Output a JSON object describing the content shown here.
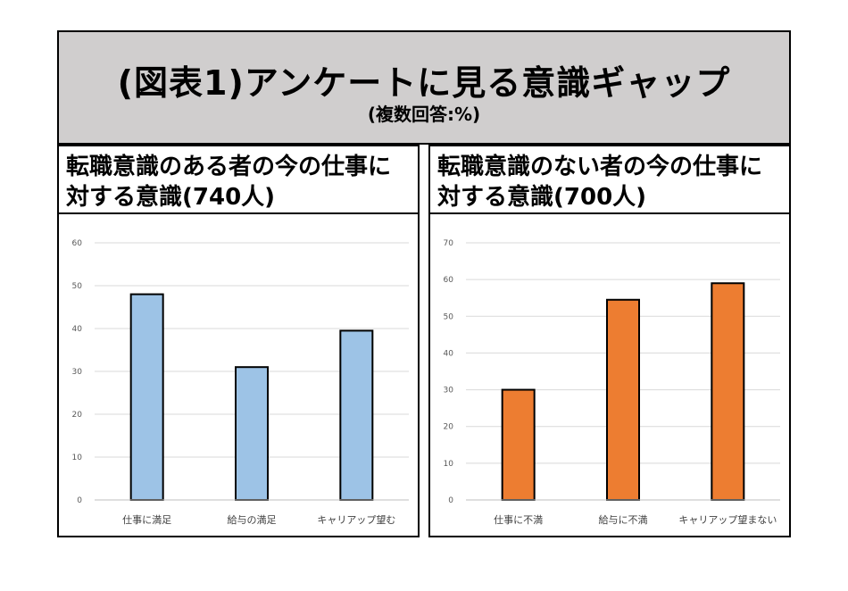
{
  "header": {
    "title": "(図表1)アンケートに見る意識ギャップ",
    "subtitle": "(複数回答:%)"
  },
  "chart_data": [
    {
      "type": "bar",
      "title": "転職意識のある者の今の仕事に対する意識(740人)",
      "categories": [
        "仕事に満足",
        "給与の満足",
        "キャリアップ望む"
      ],
      "values": [
        48,
        31,
        39.5
      ],
      "ylim": [
        0,
        60
      ],
      "yticks": [
        0,
        10,
        20,
        30,
        40,
        50,
        60
      ],
      "grid": true,
      "bar_color": "#9dc3e6"
    },
    {
      "type": "bar",
      "title": "転職意識のない者の今の仕事に対する意識(700人)",
      "categories": [
        "仕事に不満",
        "給与に不満",
        "キャリアップ望まない"
      ],
      "values": [
        30,
        54.5,
        59
      ],
      "ylim": [
        0,
        70
      ],
      "yticks": [
        0,
        10,
        20,
        30,
        40,
        50,
        60,
        70
      ],
      "grid": true,
      "bar_color": "#ed7d31"
    }
  ]
}
